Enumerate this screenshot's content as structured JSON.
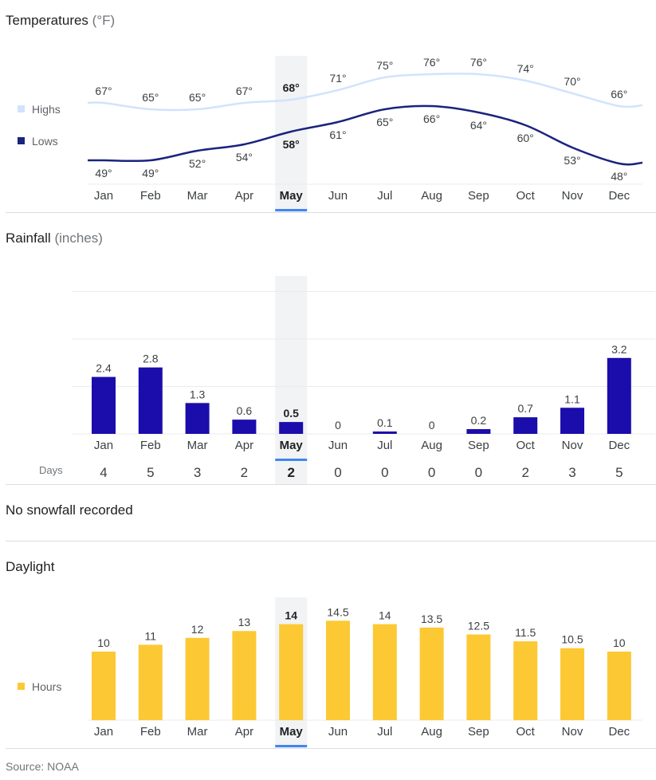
{
  "months": [
    "Jan",
    "Feb",
    "Mar",
    "Apr",
    "May",
    "Jun",
    "Jul",
    "Aug",
    "Sep",
    "Oct",
    "Nov",
    "Dec"
  ],
  "selected_index": 4,
  "colors": {
    "highs": "#d2e3fc",
    "lows": "#1a237e",
    "rain": "#1a0dab",
    "daylight": "#fcc934",
    "selection": "#f1f3f4",
    "accent": "#4285f4"
  },
  "temperature": {
    "title": "Temperatures",
    "unit": "(°F)",
    "legend_highs": "Highs",
    "legend_lows": "Lows",
    "highs_labels": [
      "67°",
      "65°",
      "65°",
      "67°",
      "68°",
      "71°",
      "75°",
      "76°",
      "76°",
      "74°",
      "70°",
      "66°"
    ],
    "lows_labels": [
      "49°",
      "49°",
      "52°",
      "54°",
      "58°",
      "61°",
      "65°",
      "66°",
      "64°",
      "60°",
      "53°",
      "48°"
    ]
  },
  "rainfall": {
    "title": "Rainfall",
    "unit": "(inches)",
    "value_labels": [
      "2.4",
      "2.8",
      "1.3",
      "0.6",
      "0.5",
      "0",
      "0.1",
      "0",
      "0.2",
      "0.7",
      "1.1",
      "3.2"
    ],
    "days_label": "Days",
    "days_labels": [
      "4",
      "5",
      "3",
      "2",
      "2",
      "0",
      "0",
      "0",
      "0",
      "2",
      "3",
      "5"
    ]
  },
  "snow": {
    "text": "No snowfall recorded"
  },
  "daylight": {
    "title": "Daylight",
    "legend": "Hours",
    "value_labels": [
      "10",
      "11",
      "12",
      "13",
      "14",
      "14.5",
      "14",
      "13.5",
      "12.5",
      "11.5",
      "10.5",
      "10"
    ]
  },
  "source": "Source: NOAA",
  "chart_data": [
    {
      "type": "line",
      "title": "Temperatures (°F)",
      "categories": [
        "Jan",
        "Feb",
        "Mar",
        "Apr",
        "May",
        "Jun",
        "Jul",
        "Aug",
        "Sep",
        "Oct",
        "Nov",
        "Dec"
      ],
      "series": [
        {
          "name": "Highs",
          "values": [
            67,
            65,
            65,
            67,
            68,
            71,
            75,
            76,
            76,
            74,
            70,
            66
          ]
        },
        {
          "name": "Lows",
          "values": [
            49,
            49,
            52,
            54,
            58,
            61,
            65,
            66,
            64,
            60,
            53,
            48
          ]
        }
      ],
      "legend": "left"
    },
    {
      "type": "bar",
      "title": "Rainfall (inches)",
      "categories": [
        "Jan",
        "Feb",
        "Mar",
        "Apr",
        "May",
        "Jun",
        "Jul",
        "Aug",
        "Sep",
        "Oct",
        "Nov",
        "Dec"
      ],
      "values": [
        2.4,
        2.8,
        1.3,
        0.6,
        0.5,
        0,
        0.1,
        0,
        0.2,
        0.7,
        1.1,
        3.2
      ],
      "days": [
        4,
        5,
        3,
        2,
        2,
        0,
        0,
        0,
        0,
        2,
        3,
        5
      ],
      "ylim": [
        0,
        6
      ],
      "grid": true
    },
    {
      "type": "bar",
      "title": "Daylight",
      "categories": [
        "Jan",
        "Feb",
        "Mar",
        "Apr",
        "May",
        "Jun",
        "Jul",
        "Aug",
        "Sep",
        "Oct",
        "Nov",
        "Dec"
      ],
      "series": [
        {
          "name": "Hours",
          "values": [
            10,
            11,
            12,
            13,
            14,
            14.5,
            14,
            13.5,
            12.5,
            11.5,
            10.5,
            10
          ]
        }
      ],
      "legend": "left"
    }
  ]
}
